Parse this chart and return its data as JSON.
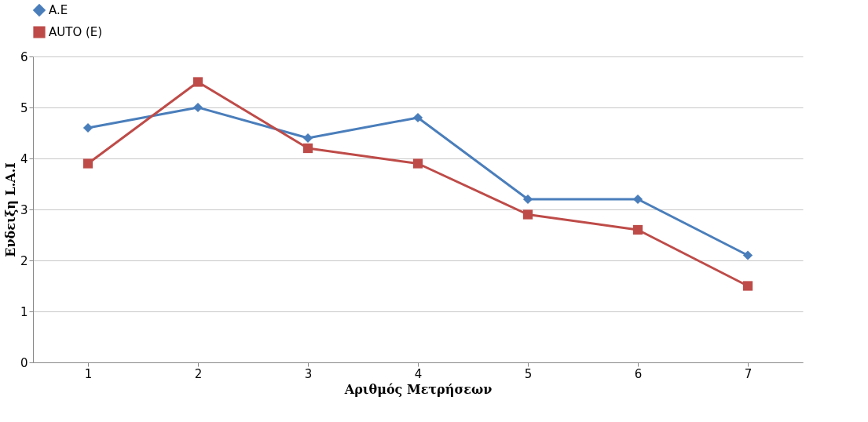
{
  "chart_data": {
    "type": "line",
    "xlabel": "Αριθμός Μετρήσεων",
    "ylabel": "Ενδειξη L.A.I",
    "categories": [
      "1",
      "2",
      "3",
      "4",
      "5",
      "6",
      "7"
    ],
    "series": [
      {
        "name": "A.E",
        "color": "#4a7ebb",
        "marker": "diamond",
        "values": [
          4.6,
          5.0,
          4.4,
          4.8,
          3.2,
          3.2,
          2.1
        ]
      },
      {
        "name": "AUTO (E)",
        "color": "#be4b48",
        "marker": "square",
        "values": [
          3.9,
          5.5,
          4.2,
          3.9,
          2.9,
          2.6,
          1.5
        ]
      }
    ],
    "ylim": [
      0,
      6
    ],
    "yticks": [
      0,
      1,
      2,
      3,
      4,
      5,
      6
    ],
    "grid": "y",
    "legend": "top",
    "line_style": "solid"
  }
}
